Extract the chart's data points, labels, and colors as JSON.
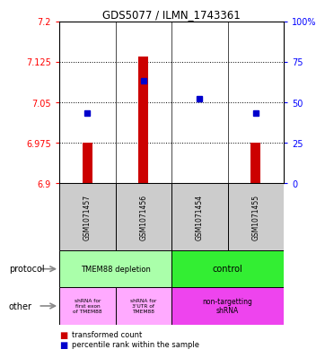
{
  "title": "GDS5077 / ILMN_1743361",
  "samples": [
    "GSM1071457",
    "GSM1071456",
    "GSM1071454",
    "GSM1071455"
  ],
  "red_values": [
    6.975,
    7.135,
    6.9,
    6.975
  ],
  "blue_values": [
    7.03,
    7.09,
    7.057,
    7.03
  ],
  "ylim_left": [
    6.9,
    7.2
  ],
  "ylim_right": [
    0,
    100
  ],
  "yticks_left": [
    6.9,
    6.975,
    7.05,
    7.125,
    7.2
  ],
  "yticks_right": [
    0,
    25,
    50,
    75,
    100
  ],
  "ytick_labels_left": [
    "6.9",
    "6.975",
    "7.05",
    "7.125",
    "7.2"
  ],
  "ytick_labels_right": [
    "0",
    "25",
    "50",
    "75",
    "100%"
  ],
  "bar_color": "#cc0000",
  "dot_color": "#0000cc",
  "bar_bottom": 6.9,
  "protocol_labels": [
    "TMEM88 depletion",
    "control"
  ],
  "protocol_colors": [
    "#aaffaa",
    "#33ee33"
  ],
  "other_labels": [
    "shRNA for\nfirst exon\nof TMEM88",
    "shRNA for\n3'UTR of\nTMEM88",
    "non-targetting\nshRNA"
  ],
  "other_colors": [
    "#ffaaff",
    "#ffaaff",
    "#ee44ee"
  ],
  "left_label_protocol": "protocol",
  "left_label_other": "other",
  "legend_red": "transformed count",
  "legend_blue": "percentile rank within the sample",
  "sample_bg_color": "#cccccc",
  "bar_width": 0.18
}
